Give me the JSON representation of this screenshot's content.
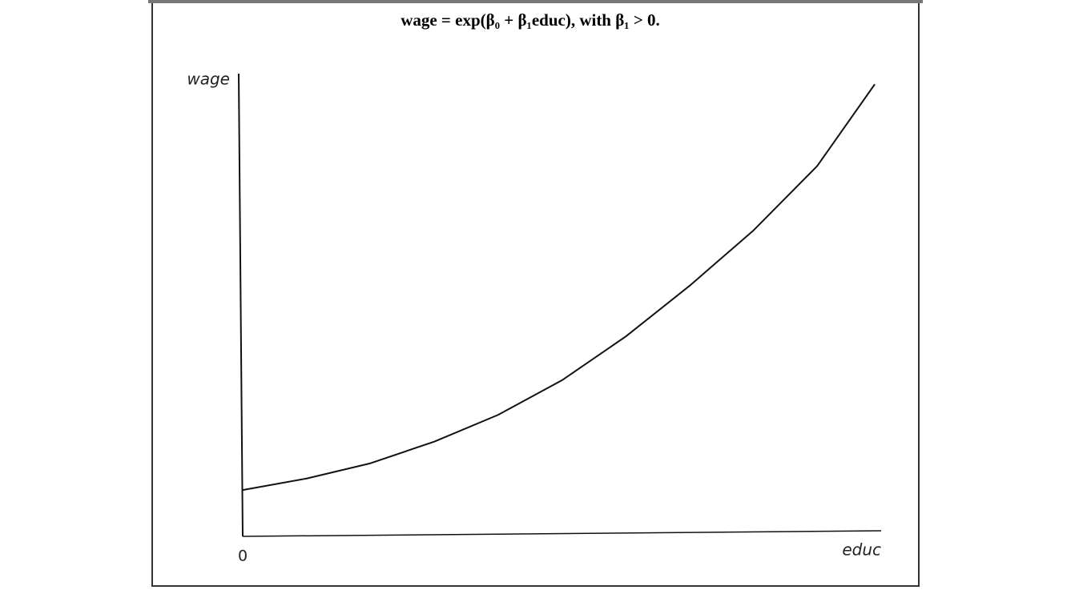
{
  "chart_data": {
    "type": "line",
    "title": "wage = exp(β₀ + β₁educ), with β₁ > 0.",
    "x_label": "educ",
    "y_label": "wage",
    "x": [
      0,
      10,
      20,
      30,
      40,
      50,
      60,
      70,
      80,
      90,
      99
    ],
    "series": [
      {
        "color": "#111111",
        "values": [
          9.7,
          12.2,
          15.5,
          20.2,
          26,
          33.5,
          43,
          54,
          66,
          80,
          97.7
        ]
      }
    ],
    "xlim": [
      0,
      100
    ],
    "ylim": [
      0,
      100
    ],
    "xticks": [
      0
    ]
  }
}
